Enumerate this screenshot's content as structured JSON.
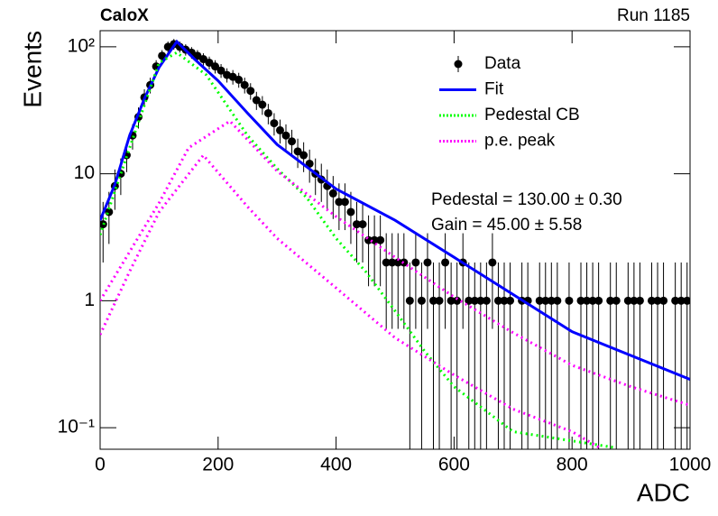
{
  "chart_data": {
    "type": "line",
    "title": "CaloX",
    "subtitle": "Run 1185",
    "x_label": "ADC",
    "y_label": "Events",
    "log_y": true,
    "xlim": [
      0,
      1000
    ],
    "ylim": [
      0.0676,
      134
    ],
    "xticks": [
      0,
      200,
      400,
      600,
      800,
      1000
    ],
    "yticks": [
      {
        "value": 0.1,
        "label": "10⁻¹"
      },
      1,
      10,
      {
        "value": 100,
        "label": "10²"
      }
    ],
    "annotations": [
      "Pedestal = 130.00 ± 0.30",
      "Gain = 45.00 ± 5.58"
    ],
    "series": [
      {
        "name": "Data",
        "color": "#000000",
        "style": "marker",
        "x": [
          5,
          15,
          25,
          35,
          45,
          55,
          65,
          75,
          85,
          95,
          105,
          115,
          125,
          135,
          145,
          155,
          165,
          175,
          185,
          195,
          205,
          215,
          225,
          235,
          245,
          255,
          265,
          275,
          285,
          295,
          305,
          315,
          325,
          335,
          345,
          355,
          365,
          375,
          385,
          395,
          405,
          415,
          425,
          435,
          445,
          455,
          465,
          475,
          485,
          495,
          505,
          515,
          525,
          535,
          545,
          555,
          565,
          575,
          585,
          595,
          605,
          615,
          625,
          635,
          645,
          655,
          665,
          675,
          685,
          695,
          705,
          715,
          725,
          735,
          745,
          755,
          765,
          775,
          785,
          795,
          805,
          815,
          825,
          835,
          845,
          855,
          865,
          875,
          885,
          895,
          905,
          915,
          925,
          935,
          945,
          955,
          965,
          975,
          985,
          995
        ],
        "values": [
          4,
          5,
          8,
          10,
          14,
          20,
          28,
          40,
          50,
          70,
          85,
          100,
          105,
          100,
          95,
          90,
          85,
          80,
          75,
          70,
          65,
          60,
          58,
          55,
          50,
          45,
          38,
          35,
          30,
          25,
          22,
          20,
          18,
          15,
          14,
          12,
          10,
          9,
          8,
          7,
          6,
          6,
          5,
          4,
          4,
          3,
          3,
          3,
          2,
          2,
          2,
          2,
          1,
          2,
          1,
          2,
          1,
          1,
          2,
          1,
          1,
          2,
          1,
          1,
          1,
          1,
          2,
          1,
          1,
          1,
          null,
          1,
          1,
          null,
          1,
          1,
          1,
          1,
          null,
          1,
          null,
          1,
          1,
          1,
          1,
          null,
          1,
          1,
          null,
          1,
          1,
          1,
          null,
          1,
          1,
          1,
          null,
          1,
          1,
          1
        ],
        "errors": [
          2,
          2.2,
          2.8,
          3.2,
          3.7,
          4.5,
          5.3,
          6.3,
          7.1,
          8.4,
          9.2,
          10,
          10.2,
          10,
          9.7,
          9.5,
          9.2,
          8.9,
          8.7,
          8.4,
          8.1,
          7.7,
          7.6,
          7.4,
          7.1,
          6.7,
          6.2,
          5.9,
          5.5,
          5,
          4.7,
          4.5,
          4.2,
          3.9,
          3.7,
          3.5,
          3.2,
          3,
          2.8,
          2.6,
          2.4,
          2.4,
          2.2,
          2,
          2,
          1.7,
          1.7,
          1.7,
          1.4,
          1.4,
          1.4,
          1.4,
          1,
          1.4,
          1,
          1.4,
          1,
          1,
          1.4,
          1,
          1,
          1.4,
          1,
          1,
          1,
          1,
          1.4,
          1,
          1,
          1,
          null,
          1,
          1,
          null,
          1,
          1,
          1,
          1,
          null,
          1,
          null,
          1,
          1,
          1,
          1,
          null,
          1,
          1,
          null,
          1,
          1,
          1,
          null,
          1,
          1,
          1,
          null,
          1,
          1,
          1
        ]
      },
      {
        "name": "Fit",
        "color": "#0000ff",
        "style": "line",
        "x": [
          0,
          25,
          50,
          75,
          100,
          130,
          160,
          200,
          250,
          300,
          400,
          500,
          600,
          800,
          1000
        ],
        "values": [
          4.3,
          8.2,
          20,
          39,
          69,
          110,
          80,
          54,
          30,
          17,
          7.6,
          4.3,
          2.2,
          0.57,
          0.24
        ]
      },
      {
        "name": "Pedestal CB",
        "color": "#00ff00",
        "style": "dotted",
        "x": [
          0,
          50,
          100,
          130,
          180,
          250,
          300,
          350,
          400,
          450,
          500,
          550,
          600,
          650,
          700,
          870
        ],
        "values": [
          3.3,
          16,
          75,
          90,
          60,
          20,
          11,
          6.5,
          3.1,
          1.7,
          0.83,
          0.4,
          0.21,
          0.14,
          0.093,
          0.07
        ]
      },
      {
        "name": "p.e. peak",
        "color": "#ff00ff",
        "style": "dotted",
        "x": [
          0,
          100,
          150,
          220,
          300,
          400,
          500,
          600,
          700,
          800,
          900,
          1000
        ],
        "values": [
          1,
          5.9,
          16,
          26,
          10.5,
          4.6,
          2.2,
          1.07,
          0.56,
          0.31,
          0.21,
          0.15
        ]
      },
      {
        "color": "#ff00ff",
        "style": "dotted",
        "x": [
          0,
          50,
          100,
          175,
          250,
          300,
          400,
          500,
          600,
          700,
          800,
          850
        ],
        "values": [
          0.54,
          1.7,
          5,
          14,
          5.5,
          3.1,
          1.26,
          0.51,
          0.26,
          0.14,
          0.093,
          0.068
        ]
      }
    ]
  }
}
